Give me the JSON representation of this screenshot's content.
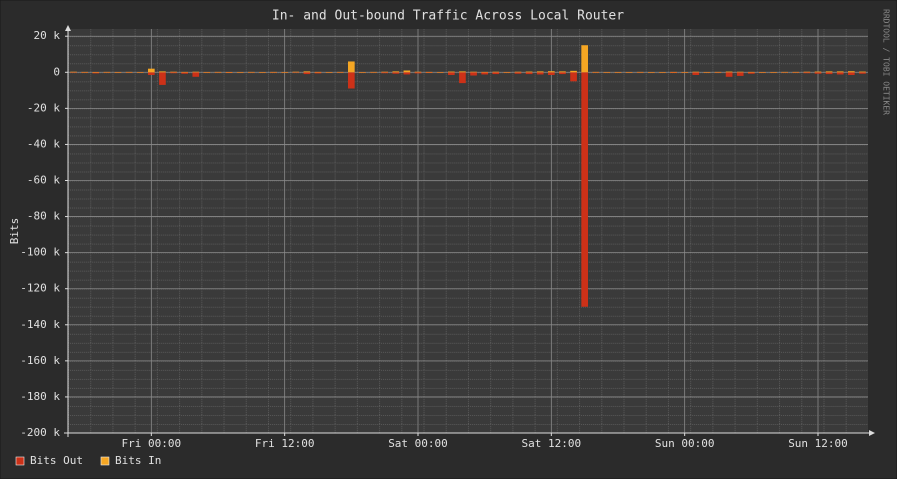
{
  "chart_data": {
    "type": "bar",
    "title": "In- and Out-bound Traffic Across Local Router",
    "y_label": "Bits",
    "watermark": "RRDTOOL / TOBI OETIKER",
    "categories": [
      null,
      null,
      null,
      null,
      null,
      null,
      null,
      "Fri 00:00",
      null,
      null,
      null,
      null,
      null,
      null,
      null,
      null,
      null,
      null,
      null,
      "Fri 12:00",
      null,
      null,
      null,
      null,
      null,
      null,
      null,
      null,
      null,
      null,
      null,
      "Sat 00:00",
      null,
      null,
      null,
      null,
      null,
      null,
      null,
      null,
      null,
      null,
      null,
      "Sat 12:00",
      null,
      null,
      null,
      null,
      null,
      null,
      null,
      null,
      null,
      null,
      null,
      "Sun 00:00",
      null,
      null,
      null,
      null,
      null,
      null,
      null,
      null,
      null,
      null,
      null,
      "Sun 12:00",
      null,
      null,
      null,
      null
    ],
    "series": [
      {
        "name": "Bits Out",
        "color": "#cc3118",
        "values": [
          -200,
          -300,
          -600,
          -200,
          -100,
          -300,
          -200,
          -1500,
          -7000,
          -500,
          -800,
          -2500,
          -300,
          -200,
          -400,
          -100,
          -200,
          -100,
          -300,
          -200,
          -100,
          -1000,
          -600,
          -200,
          -300,
          -9000,
          -200,
          -100,
          -500,
          -800,
          -1200,
          -600,
          -400,
          -200,
          -1500,
          -6000,
          -1800,
          -1200,
          -1000,
          -300,
          -800,
          -1000,
          -1200,
          -1500,
          -1000,
          -5000,
          -130000,
          -300,
          -200,
          -100,
          -200,
          -300,
          -200,
          -100,
          -400,
          -300,
          -1500,
          -200,
          -300,
          -2500,
          -2000,
          -800,
          -300,
          -100,
          -200,
          -300,
          -500,
          -800,
          -1000,
          -1200,
          -1500,
          -800
        ]
      },
      {
        "name": "Bits In",
        "color": "#f5a623",
        "values": [
          300,
          200,
          100,
          200,
          100,
          200,
          100,
          2000,
          500,
          300,
          200,
          300,
          100,
          200,
          100,
          100,
          200,
          100,
          200,
          100,
          300,
          500,
          200,
          100,
          200,
          6000,
          100,
          200,
          300,
          500,
          1000,
          300,
          200,
          100,
          400,
          500,
          300,
          200,
          300,
          100,
          300,
          400,
          500,
          600,
          500,
          800,
          15000,
          200,
          100,
          100,
          100,
          200,
          100,
          100,
          200,
          100,
          300,
          100,
          200,
          400,
          300,
          200,
          100,
          100,
          200,
          200,
          300,
          400,
          500,
          500,
          600,
          400
        ]
      }
    ],
    "ylim": [
      -200000,
      24000
    ],
    "yticks": [
      {
        "value": 20000,
        "label": "20 k"
      },
      0,
      {
        "value": -20000,
        "label": "-20 k"
      },
      {
        "value": -40000,
        "label": "-40 k"
      },
      {
        "value": -60000,
        "label": "-60 k"
      },
      {
        "value": -80000,
        "label": "-80 k"
      },
      {
        "value": -100000,
        "label": "-100 k"
      },
      {
        "value": -120000,
        "label": "-120 k"
      },
      {
        "value": -140000,
        "label": "-140 k"
      },
      {
        "value": -160000,
        "label": "-160 k"
      },
      {
        "value": -180000,
        "label": "-180 k"
      },
      {
        "value": -200000,
        "label": "-200 k"
      }
    ],
    "grid": true,
    "legend": "bottom-left"
  }
}
